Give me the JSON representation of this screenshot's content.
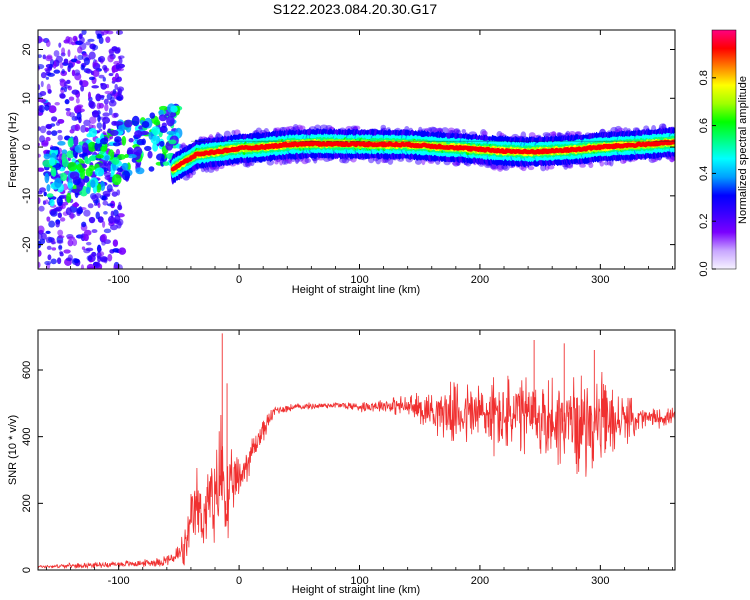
{
  "title": "S122.2023.084.20.30.G17",
  "chart_data": [
    {
      "type": "heatmap",
      "xlabel": "Height of straight line (km)",
      "ylabel": "Frequency (Hz)",
      "xlim": [
        -167,
        362
      ],
      "ylim": [
        -25,
        24
      ],
      "xticks": [
        -100,
        0,
        100,
        200,
        300
      ],
      "yticks": [
        -20,
        -10,
        0,
        10,
        20
      ],
      "colorbar": {
        "label": "Normalized spectral amplitude",
        "range": [
          0.0,
          1.0
        ],
        "ticks": [
          0.0,
          0.2,
          0.4,
          0.6,
          0.8
        ],
        "tick_labels": [
          "0.0",
          "0.2",
          "0.4",
          "0.6",
          "0.8"
        ],
        "colors": [
          "#f7f3ff",
          "#c8a6ff",
          "#7a00ff",
          "#3a00ff",
          "#0000ff",
          "#00a0ff",
          "#00ffff",
          "#00ff80",
          "#00ff00",
          "#a0ff00",
          "#ffff00",
          "#ff8000",
          "#ff0000",
          "#ff0080"
        ]
      },
      "ridge": {
        "x": [
          -55,
          -45,
          -35,
          -20,
          -5,
          0,
          20,
          40,
          60,
          100,
          140,
          160,
          180,
          200,
          220,
          240,
          260,
          280,
          300,
          320,
          340,
          362
        ],
        "y": [
          -4.5,
          -3.0,
          -1.5,
          -1.0,
          -0.5,
          -0.3,
          0.0,
          0.5,
          0.7,
          0.6,
          0.5,
          0.2,
          -0.1,
          -0.5,
          -0.8,
          -1.0,
          -0.8,
          -0.5,
          0.0,
          0.3,
          0.6,
          1.0
        ]
      },
      "plateau": {
        "x": [
          -40,
          362
        ],
        "y": [
          0,
          0.8
        ]
      }
    },
    {
      "type": "line",
      "xlabel": "Height of straight line (km)",
      "ylabel": "SNR (10 * v/v)",
      "xlim": [
        -167,
        362
      ],
      "ylim": [
        0,
        720
      ],
      "xticks": [
        -100,
        0,
        100,
        200,
        300
      ],
      "yticks": [
        0,
        200,
        400,
        600
      ],
      "series": [
        {
          "color": "#f03030",
          "envelope": {
            "x": [
              -167,
              -120,
              -80,
              -65,
              -55,
              -45,
              -40,
              -35,
              -30,
              -25,
              -20,
              -15,
              -10,
              -5,
              0,
              10,
              20,
              30,
              50,
              80,
              100,
              120,
              140,
              160,
              180,
              200,
              220,
              240,
              260,
              280,
              300,
              320,
              340,
              362
            ],
            "center": [
              10,
              15,
              20,
              25,
              35,
              60,
              130,
              200,
              150,
              220,
              170,
              320,
              180,
              260,
              270,
              350,
              420,
              480,
              490,
              495,
              490,
              495,
              490,
              480,
              470,
              470,
              460,
              460,
              450,
              440,
              440,
              450,
              455,
              460
            ],
            "spread": [
              5,
              8,
              10,
              15,
              20,
              60,
              90,
              110,
              100,
              120,
              150,
              190,
              150,
              90,
              70,
              50,
              35,
              15,
              10,
              10,
              15,
              20,
              35,
              60,
              90,
              110,
              120,
              120,
              130,
              140,
              140,
              70,
              30,
              25
            ]
          },
          "spikes": [
            {
              "x": -14,
              "y": 710
            },
            {
              "x": -10,
              "y": 560
            },
            {
              "x": 270,
              "y": 680
            },
            {
              "x": 245,
              "y": 690
            },
            {
              "x": 295,
              "y": 660
            }
          ]
        }
      ]
    }
  ]
}
